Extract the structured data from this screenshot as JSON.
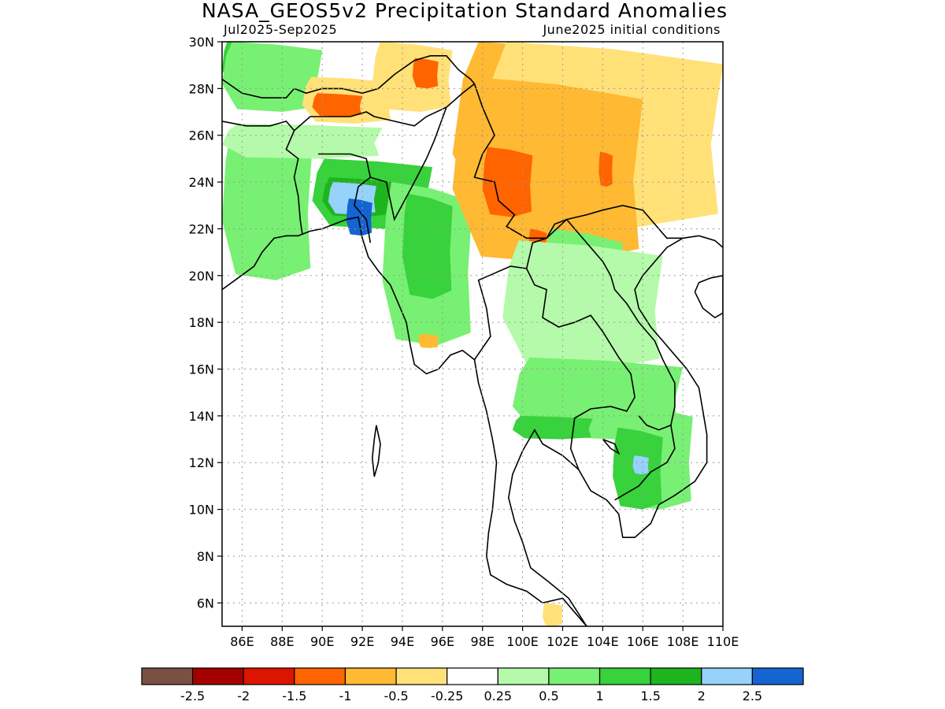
{
  "header": {
    "title": "NASA_GEOS5v2 Precipitation Standard Anomalies",
    "period": "Jul2025-Sep2025",
    "init": "June2025 initial conditions"
  },
  "map": {
    "lon_range": [
      85,
      110
    ],
    "lat_range": [
      5,
      30
    ],
    "lat_labels": [
      "30N",
      "28N",
      "26N",
      "24N",
      "22N",
      "20N",
      "18N",
      "16N",
      "14N",
      "12N",
      "10N",
      "8N",
      "6N"
    ],
    "lat_values": [
      30,
      28,
      26,
      24,
      22,
      20,
      18,
      16,
      14,
      12,
      10,
      8,
      6
    ],
    "lon_labels": [
      "86E",
      "88E",
      "90E",
      "92E",
      "94E",
      "96E",
      "98E",
      "100E",
      "102E",
      "104E",
      "106E",
      "108E",
      "110E"
    ],
    "lon_values": [
      86,
      88,
      90,
      92,
      94,
      96,
      98,
      100,
      102,
      104,
      106,
      108,
      110
    ],
    "grid": true
  },
  "colorbar": {
    "colors": [
      "#7a5045",
      "#a50000",
      "#dc1400",
      "#ff6400",
      "#ffb932",
      "#ffe178",
      "#ffffff",
      "#b4faaa",
      "#78f073",
      "#37d23c",
      "#1eb41e",
      "#96d2fa",
      "#1464d2"
    ],
    "labels": [
      "-2.5",
      "-2",
      "-1.5",
      "-1",
      "-0.5",
      "-0.25",
      "0.25",
      "0.5",
      "1",
      "1.5",
      "2",
      "2.5"
    ]
  },
  "anomaly_regions": [
    {
      "level": "1",
      "color": "#78f073",
      "lon": [
        85.0,
        89.5
      ],
      "lat": [
        19.8,
        26.2
      ]
    },
    {
      "level": "0.5",
      "color": "#b4faaa",
      "lon": [
        85.0,
        93.0
      ],
      "lat": [
        25.0,
        26.5
      ]
    },
    {
      "level": "1.5",
      "color": "#37d23c",
      "lon": [
        89.5,
        95.5
      ],
      "lat": [
        22.0,
        25.0
      ]
    },
    {
      "level": "2",
      "color": "#1eb41e",
      "lon": [
        90.0,
        93.5
      ],
      "lat": [
        22.5,
        24.2
      ]
    },
    {
      "level": "2.5",
      "color": "#96d2fa",
      "lon": [
        90.3,
        92.7
      ],
      "lat": [
        22.6,
        24.0
      ]
    },
    {
      "level": ">2.5",
      "color": "#1464d2",
      "lon": [
        91.2,
        92.5
      ],
      "lat": [
        21.7,
        23.3
      ]
    },
    {
      "level": "1",
      "color": "#78f073",
      "lon": [
        93.0,
        97.5
      ],
      "lat": [
        17.0,
        24.0
      ]
    },
    {
      "level": "1.5",
      "color": "#37d23c",
      "lon": [
        94.0,
        96.5
      ],
      "lat": [
        19.0,
        23.5
      ]
    },
    {
      "level": "1.5",
      "color": "#37d23c",
      "lon": [
        85.0,
        87.5
      ],
      "lat": [
        28.0,
        30.0
      ]
    },
    {
      "level": "1",
      "color": "#78f073",
      "lon": [
        85.0,
        90.0
      ],
      "lat": [
        27.0,
        30.0
      ]
    },
    {
      "level": "-0.25",
      "color": "#ffe178",
      "lon": [
        89.0,
        93.5
      ],
      "lat": [
        26.5,
        28.5
      ]
    },
    {
      "level": "-1",
      "color": "#ff6400",
      "lon": [
        89.5,
        92.0
      ],
      "lat": [
        26.8,
        27.8
      ]
    },
    {
      "level": "-0.25",
      "color": "#ffe178",
      "lon": [
        92.5,
        96.5
      ],
      "lat": [
        27.0,
        30.0
      ]
    },
    {
      "level": "-1",
      "color": "#ff6400",
      "lon": [
        94.5,
        95.8
      ],
      "lat": [
        28.0,
        29.3
      ]
    },
    {
      "level": "-0.5",
      "color": "#ffb932",
      "lon": [
        96.5,
        109.5
      ],
      "lat": [
        22.0,
        30.0
      ]
    },
    {
      "level": "-0.25",
      "color": "#ffe178",
      "lon": [
        98.0,
        110.0
      ],
      "lat": [
        22.0,
        30.0
      ]
    },
    {
      "level": "-0.5",
      "color": "#ffb932",
      "lon": [
        96.5,
        106.0
      ],
      "lat": [
        20.5,
        28.5
      ]
    },
    {
      "level": "-1",
      "color": "#ff6400",
      "lon": [
        98.0,
        100.5
      ],
      "lat": [
        22.5,
        25.5
      ]
    },
    {
      "level": "-1",
      "color": "#ff6400",
      "lon": [
        103.8,
        104.5
      ],
      "lat": [
        23.8,
        25.3
      ]
    },
    {
      "level": "-1",
      "color": "#ff6400",
      "lon": [
        100.3,
        101.2
      ],
      "lat": [
        20.5,
        22.0
      ]
    },
    {
      "level": "1",
      "color": "#78f073",
      "lon": [
        101.0,
        105.0
      ],
      "lat": [
        17.0,
        22.0
      ]
    },
    {
      "level": "0.5",
      "color": "#b4faaa",
      "lon": [
        99.0,
        107.0
      ],
      "lat": [
        16.0,
        21.5
      ]
    },
    {
      "level": "1",
      "color": "#78f073",
      "lon": [
        99.5,
        108.0
      ],
      "lat": [
        13.0,
        16.5
      ]
    },
    {
      "level": "1.5",
      "color": "#37d23c",
      "lon": [
        99.5,
        103.5
      ],
      "lat": [
        13.0,
        14.0
      ]
    },
    {
      "level": "1",
      "color": "#78f073",
      "lon": [
        104.5,
        108.5
      ],
      "lat": [
        10.0,
        14.5
      ]
    },
    {
      "level": "1.5",
      "color": "#37d23c",
      "lon": [
        104.5,
        107.0
      ],
      "lat": [
        10.0,
        13.5
      ]
    },
    {
      "level": "2.5",
      "color": "#96d2fa",
      "lon": [
        105.5,
        106.3
      ],
      "lat": [
        11.5,
        12.3
      ]
    },
    {
      "level": "-0.5",
      "color": "#ffb932",
      "lon": [
        94.8,
        95.8
      ],
      "lat": [
        16.9,
        17.5
      ]
    },
    {
      "level": "-0.25",
      "color": "#ffe178",
      "lon": [
        101.0,
        102.0
      ],
      "lat": [
        5.0,
        6.0
      ]
    }
  ]
}
